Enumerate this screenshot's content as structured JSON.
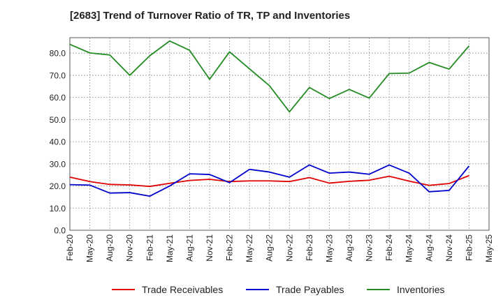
{
  "chart_data": {
    "type": "line",
    "title": "[2683]  Trend of Turnover Ratio of TR, TP and Inventories",
    "xlabel": "",
    "ylabel": "",
    "ylim": [
      0,
      87
    ],
    "yticks": [
      "0.0",
      "10.0",
      "20.0",
      "30.0",
      "40.0",
      "50.0",
      "60.0",
      "70.0",
      "80.0"
    ],
    "categories": [
      "Feb-20",
      "May-20",
      "Aug-20",
      "Nov-20",
      "Feb-21",
      "May-21",
      "Aug-21",
      "Nov-21",
      "Feb-22",
      "May-22",
      "Aug-22",
      "Nov-22",
      "Feb-23",
      "May-23",
      "Aug-23",
      "Nov-23",
      "Feb-24",
      "May-24",
      "Aug-24",
      "Nov-24",
      "Feb-25",
      "May-25"
    ],
    "grid": true,
    "legend_position": "bottom",
    "series": [
      {
        "name": "Trade Receivables",
        "color": "#e00000",
        "values": [
          24.0,
          22.0,
          20.7,
          20.5,
          19.8,
          21.2,
          22.5,
          23.0,
          22.0,
          22.3,
          22.3,
          22.0,
          23.8,
          21.3,
          22.1,
          22.6,
          24.4,
          22.2,
          20.3,
          21.1,
          24.7,
          null
        ]
      },
      {
        "name": "Trade Payables",
        "color": "#0000cc",
        "values": [
          20.6,
          20.4,
          16.8,
          17.0,
          15.4,
          20.0,
          25.5,
          25.2,
          21.5,
          27.5,
          26.3,
          24.0,
          29.5,
          25.8,
          26.3,
          25.3,
          29.5,
          25.8,
          17.4,
          18.0,
          29.0,
          null
        ]
      },
      {
        "name": "Inventories",
        "color": "#228b22",
        "values": [
          84.0,
          80.1,
          79.2,
          70.0,
          78.8,
          85.5,
          81.3,
          68.2,
          80.6,
          72.9,
          65.3,
          53.5,
          64.5,
          59.5,
          63.6,
          59.7,
          70.8,
          71.0,
          75.8,
          72.8,
          83.3,
          null
        ]
      }
    ]
  }
}
